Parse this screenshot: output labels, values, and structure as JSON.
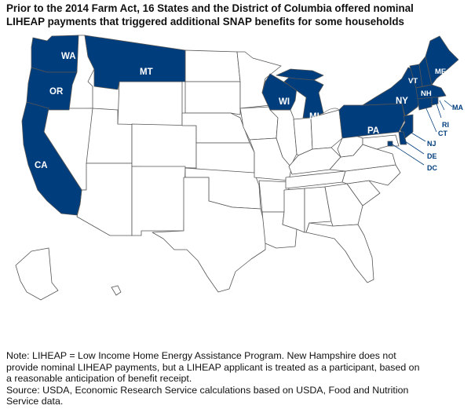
{
  "title": {
    "line1": "Prior to the 2014 Farm Act, 16 States and the District of Columbia offered nominal",
    "line2": "LIHEAP payments that triggered additional SNAP benefits for some households"
  },
  "map": {
    "highlight_color": "#003d7d",
    "base_color": "#ffffff",
    "border_color": "#555555",
    "highlighted_states": [
      {
        "abbr": "WA"
      },
      {
        "abbr": "OR"
      },
      {
        "abbr": "CA"
      },
      {
        "abbr": "MT"
      },
      {
        "abbr": "WI"
      },
      {
        "abbr": "MI"
      },
      {
        "abbr": "PA"
      },
      {
        "abbr": "NY"
      },
      {
        "abbr": "VT"
      },
      {
        "abbr": "NH"
      },
      {
        "abbr": "ME"
      },
      {
        "abbr": "MA"
      },
      {
        "abbr": "RI"
      },
      {
        "abbr": "CT"
      },
      {
        "abbr": "NJ"
      },
      {
        "abbr": "DE"
      },
      {
        "abbr": "DC"
      }
    ]
  },
  "notes": {
    "line1": "Note: LIHEAP = Low Income Home Energy Assistance Program. New Hampshire does not",
    "line2": "provide nominal LIHEAP payments, but a LIHEAP applicant is treated as a participant, based on",
    "line3": "a reasonable anticipation of benefit receipt.",
    "line4": "Source: USDA, Economic Research Service calculations based on USDA, Food and Nutrition",
    "line5": "Service data."
  }
}
